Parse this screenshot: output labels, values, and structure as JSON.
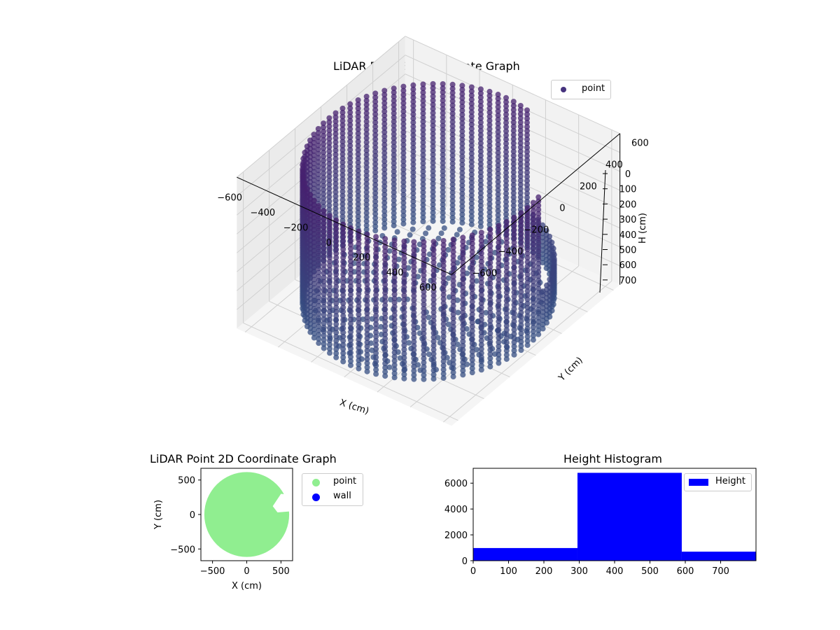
{
  "chart_data": [
    {
      "type": "scatter3d",
      "title": "LiDAR Point 3D Coordinate Graph",
      "xlabel": "X (cm)",
      "ylabel": "Y (cm)",
      "zlabel": "H (cm)",
      "x_ticks": [
        "−600",
        "−400",
        "−200",
        "0",
        "200",
        "400",
        "600"
      ],
      "y_ticks": [
        "−600",
        "−400",
        "−200",
        "0",
        "200",
        "400",
        "600"
      ],
      "z_ticks": [
        "0",
        "100",
        "200",
        "300",
        "400",
        "500",
        "600",
        "700"
      ],
      "xlim": [
        -650,
        650
      ],
      "ylim": [
        -650,
        650
      ],
      "zlim": [
        0,
        800
      ],
      "zaxis_inverted": true,
      "legend": [
        "point"
      ],
      "description": "Cylindrical ring of points radius ~600 cm spanning heights 0-780 cm, with a gap on +X/+Y side",
      "grid": true,
      "point_color": "#46337e"
    },
    {
      "type": "scatter",
      "title": "LiDAR Point 2D Coordinate Graph",
      "xlabel": "X (cm)",
      "ylabel": "Y (cm)",
      "x_ticks": [
        "−500",
        "0",
        "500"
      ],
      "y_ticks": [
        "−500",
        "0",
        "500"
      ],
      "xlim": [
        -670,
        670
      ],
      "ylim": [
        -670,
        670
      ],
      "legend": [
        "point",
        "wall"
      ],
      "series": [
        {
          "name": "point",
          "color": "#90ee90",
          "shape": "filled disk radius ~620 with notch at +X"
        },
        {
          "name": "wall",
          "color": "#0000ff",
          "points": []
        }
      ]
    },
    {
      "type": "histogram",
      "title": "Height Histogram",
      "xlabel": "",
      "ylabel": "",
      "bins": [
        0,
        295,
        590,
        800
      ],
      "values": [
        980,
        6800,
        700
      ],
      "color": "#0000ff",
      "legend": [
        "Height"
      ],
      "x_ticks": [
        "0",
        "100",
        "200",
        "300",
        "400",
        "500",
        "600",
        "700"
      ],
      "y_ticks": [
        "0",
        "2000",
        "4000",
        "6000"
      ],
      "xlim": [
        0,
        800
      ],
      "ylim": [
        0,
        7150
      ]
    }
  ],
  "labels": {
    "title3d": "LiDAR Point 3D Coordinate Graph",
    "legend3d": "point",
    "title2d": "LiDAR Point 2D Coordinate Graph",
    "legend2d_point": "point",
    "legend2d_wall": "wall",
    "x2d": "X (cm)",
    "y2d": "Y (cm)",
    "titleHist": "Height Histogram",
    "legendHist": "Height"
  }
}
